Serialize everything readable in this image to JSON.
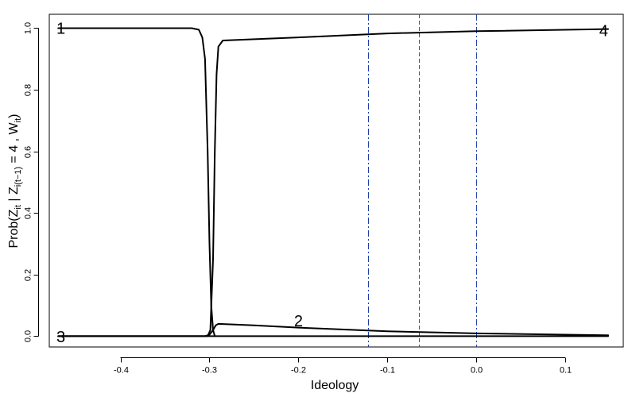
{
  "chart_data": {
    "type": "line",
    "xlabel": "Ideology",
    "ylabel": {
      "prefix": "Prob(Z",
      "sub1": "it",
      "mid": " | Z",
      "sub2": "i(t−1)",
      "mid2": " = 4 , W",
      "sub3": "it",
      "suffix": ")"
    },
    "xlim": [
      -0.48,
      0.165
    ],
    "ylim": [
      -0.035,
      1.045
    ],
    "x_ticks": [
      -0.4,
      -0.3,
      -0.2,
      -0.1,
      0.0,
      0.1
    ],
    "x_tick_labels": [
      "-0.4",
      "-0.3",
      "-0.2",
      "-0.1",
      "0.0",
      "0.1"
    ],
    "y_ticks": [
      0.0,
      0.2,
      0.4,
      0.6,
      0.8,
      1.0
    ],
    "y_tick_labels": [
      "0.0",
      "0.2",
      "0.4",
      "0.6",
      "0.8",
      "1.0"
    ],
    "grid": false,
    "series": [
      {
        "name": "1",
        "x": [
          -0.47,
          -0.32,
          -0.312,
          -0.308,
          -0.305,
          -0.302,
          -0.3,
          -0.298,
          -0.296,
          -0.294
        ],
        "y": [
          1.0,
          1.0,
          0.995,
          0.97,
          0.9,
          0.6,
          0.3,
          0.1,
          0.02,
          0.0
        ]
      },
      {
        "name": "2",
        "x": [
          -0.47,
          -0.305,
          -0.3,
          -0.296,
          -0.293,
          -0.29,
          -0.25,
          -0.2,
          -0.1,
          0.0,
          0.148
        ],
        "y": [
          0.0,
          0.0,
          0.005,
          0.02,
          0.035,
          0.04,
          0.035,
          0.028,
          0.016,
          0.009,
          0.003
        ]
      },
      {
        "name": "3",
        "x": [
          -0.47,
          0.148
        ],
        "y": [
          0.0,
          0.0
        ]
      },
      {
        "name": "4",
        "x": [
          -0.47,
          -0.302,
          -0.299,
          -0.296,
          -0.294,
          -0.292,
          -0.29,
          -0.285,
          -0.2,
          -0.1,
          0.0,
          0.148
        ],
        "y": [
          0.0,
          0.0,
          0.02,
          0.25,
          0.6,
          0.85,
          0.94,
          0.96,
          0.97,
          0.983,
          0.99,
          0.997
        ]
      }
    ],
    "curve_labels": [
      {
        "text": "1",
        "x": -0.467,
        "y": 1.0
      },
      {
        "text": "2",
        "x": -0.2,
        "y": 0.05
      },
      {
        "text": "3",
        "x": -0.467,
        "y": -0.002
      },
      {
        "text": "4",
        "x": 0.143,
        "y": 0.992
      }
    ],
    "vertical_lines": [
      {
        "x": -0.122,
        "color": "#1f3fa8",
        "style": "dashdot"
      },
      {
        "x": -0.065,
        "color": "#e02020",
        "style": "dashed"
      },
      {
        "x": 0.0,
        "color": "#1f3fa8",
        "style": "dashdot"
      }
    ]
  }
}
